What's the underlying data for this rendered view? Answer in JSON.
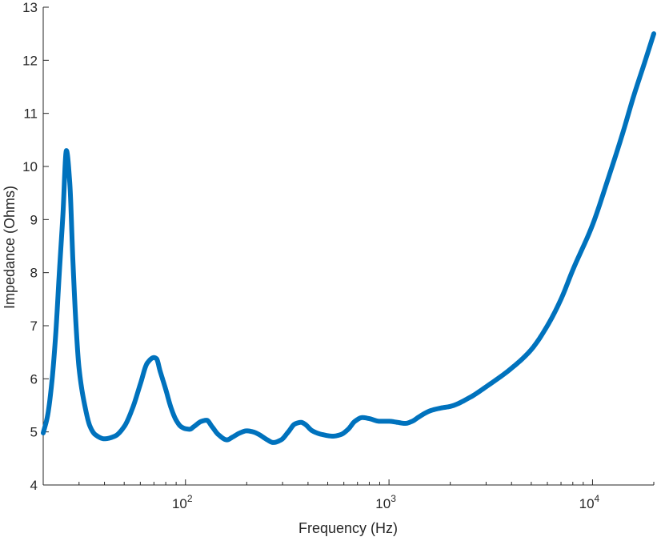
{
  "chart_data": {
    "type": "line",
    "xlabel": "Frequency (Hz)",
    "ylabel": "Impedance (Ohms)",
    "xscale": "log",
    "xlim": [
      20,
      20000
    ],
    "ylim": [
      4,
      13
    ],
    "grid": false,
    "legend": "none",
    "x_ticks": [
      {
        "value": 100,
        "base": "10",
        "exp": "2"
      },
      {
        "value": 1000,
        "base": "10",
        "exp": "3"
      },
      {
        "value": 10000,
        "base": "10",
        "exp": "4"
      }
    ],
    "y_ticks": [
      "4",
      "5",
      "6",
      "7",
      "8",
      "9",
      "10",
      "11",
      "12",
      "13"
    ],
    "series": [
      {
        "color": "#0072BD",
        "x": [
          20,
          21,
          22,
          23,
          24,
          25,
          26,
          27,
          28,
          29,
          30,
          32,
          34,
          36,
          40,
          45,
          50,
          55,
          60,
          65,
          70,
          72,
          75,
          80,
          85,
          90,
          95,
          100,
          105,
          110,
          120,
          127,
          135,
          145,
          160,
          170,
          185,
          200,
          215,
          230,
          250,
          270,
          295,
          320,
          345,
          370,
          385,
          420,
          470,
          530,
          580,
          630,
          680,
          740,
          800,
          900,
          1000,
          1100,
          1200,
          1300,
          1400,
          1500,
          1600,
          1800,
          2000,
          2500,
          3000,
          4000,
          5000,
          6000,
          7000,
          8000,
          10000,
          12000,
          14000,
          16000,
          18000,
          20000
        ],
        "y": [
          4.98,
          5.3,
          5.9,
          6.8,
          8.0,
          9.1,
          10.3,
          9.7,
          8.2,
          7.0,
          6.2,
          5.5,
          5.1,
          4.95,
          4.87,
          4.92,
          5.1,
          5.45,
          5.9,
          6.3,
          6.4,
          6.38,
          6.15,
          5.8,
          5.45,
          5.22,
          5.1,
          5.06,
          5.05,
          5.1,
          5.2,
          5.22,
          5.1,
          4.95,
          4.85,
          4.9,
          4.98,
          5.02,
          5.0,
          4.95,
          4.86,
          4.8,
          4.85,
          5.0,
          5.15,
          5.18,
          5.15,
          5.02,
          4.95,
          4.92,
          4.95,
          5.05,
          5.2,
          5.27,
          5.25,
          5.2,
          5.2,
          5.18,
          5.16,
          5.2,
          5.28,
          5.35,
          5.4,
          5.45,
          5.48,
          5.65,
          5.85,
          6.2,
          6.55,
          7.0,
          7.5,
          8.05,
          8.9,
          9.8,
          10.6,
          11.35,
          11.95,
          12.5
        ]
      }
    ]
  }
}
